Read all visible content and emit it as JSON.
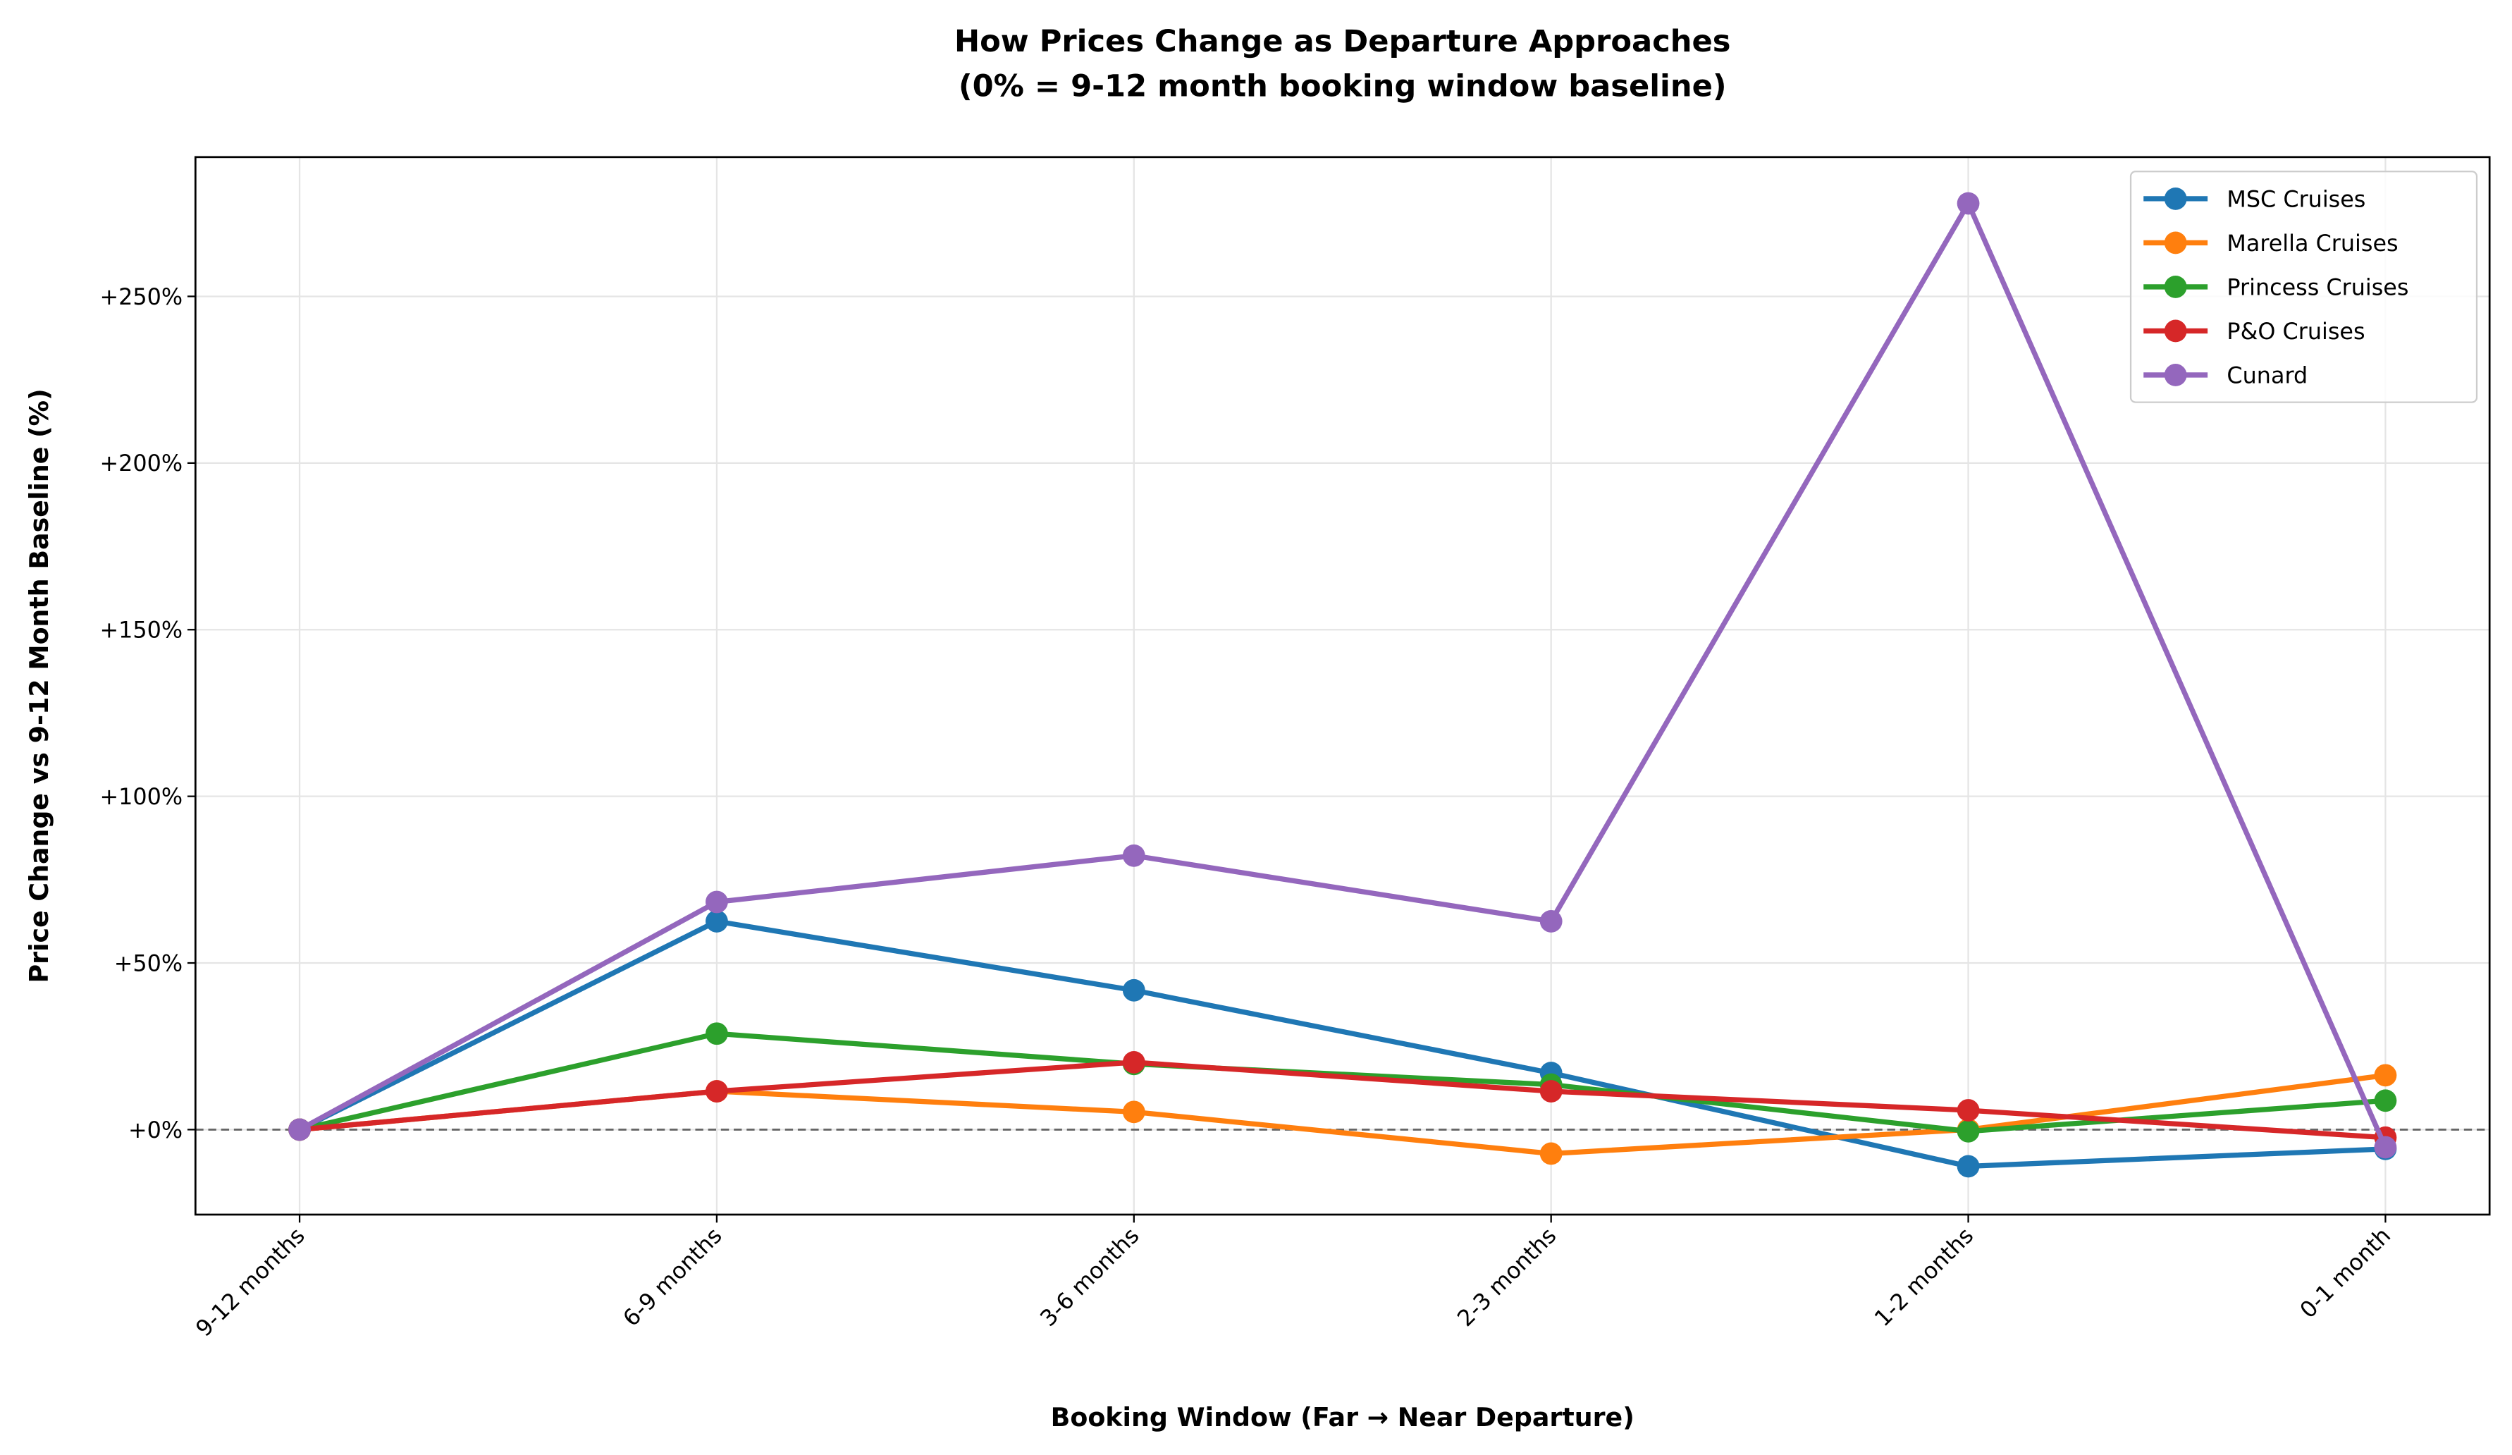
{
  "chart_data": {
    "type": "line",
    "title": "How Prices Change as Departure Approaches",
    "subtitle": "(0% = 9-12 month booking window baseline)",
    "xlabel": "Booking Window (Far → Near Departure)",
    "ylabel": "Price Change vs 9-12 Month Baseline (%)",
    "categories": [
      "9-12 months",
      "6-9 months",
      "3-6 months",
      "2-3 months",
      "1-2 months",
      "0-1 month"
    ],
    "ylim": [
      -25.5,
      291.8
    ],
    "yticks": [
      0,
      50,
      100,
      150,
      200,
      250
    ],
    "ytick_labels": [
      "+0%",
      "+50%",
      "+100%",
      "+150%",
      "+200%",
      "+250%"
    ],
    "grid": true,
    "baseline": {
      "value": 0,
      "style": "dashed",
      "color": "#666666"
    },
    "legend_position": "top-right",
    "series": [
      {
        "name": "MSC Cruises",
        "color": "#1f77b4",
        "values": [
          0,
          62.5,
          41.8,
          17.0,
          -11.0,
          -5.8
        ]
      },
      {
        "name": "Marella Cruises",
        "color": "#ff7f0e",
        "values": [
          0,
          11.5,
          5.3,
          -7.2,
          0.0,
          16.3
        ]
      },
      {
        "name": "Princess Cruises",
        "color": "#2ca02c",
        "values": [
          0,
          28.8,
          19.7,
          13.5,
          -0.5,
          8.7
        ]
      },
      {
        "name": "P&O Cruises",
        "color": "#d62728",
        "values": [
          0,
          11.5,
          20.2,
          11.5,
          5.8,
          -2.4
        ]
      },
      {
        "name": "Cunard",
        "color": "#9467bd",
        "values": [
          0,
          68.3,
          82.2,
          62.5,
          277.9,
          -5.3
        ]
      }
    ]
  }
}
